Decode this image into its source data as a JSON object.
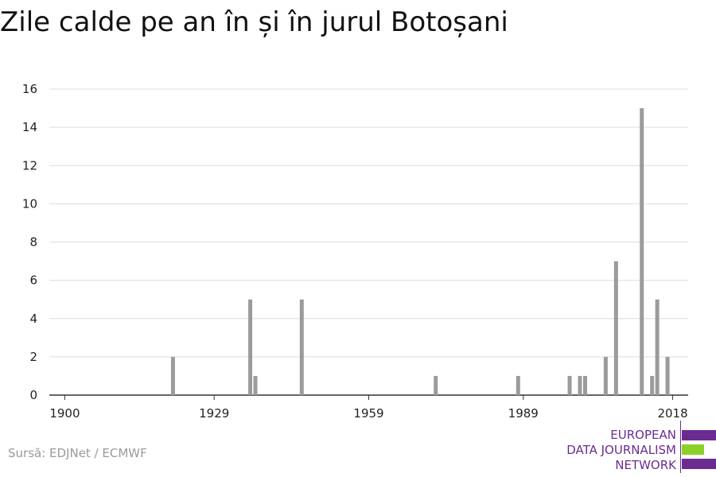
{
  "title": "Zile calde pe an în și în jurul Botoșani",
  "source": "Sursă: EDJNet / ECMWF",
  "logo": {
    "lines": [
      "EUROPEAN",
      "DATA JOURNALISM",
      "NETWORK"
    ],
    "colors": {
      "purple": "#6b2c91",
      "green": "#8cd12b"
    }
  },
  "chart_data": {
    "type": "bar",
    "title": "Zile calde pe an în și în jurul Botoșani",
    "xlabel": "",
    "ylabel": "",
    "xlim": [
      1897,
      2021
    ],
    "ylim": [
      0,
      16
    ],
    "x_ticks": [
      1900,
      1929,
      1959,
      1989,
      2018
    ],
    "y_ticks": [
      0,
      2,
      4,
      6,
      8,
      10,
      12,
      14,
      16
    ],
    "grid": true,
    "bar_color": "#9b9b9b",
    "x": [
      1921,
      1936,
      1937,
      1946,
      1972,
      1988,
      1998,
      2000,
      2001,
      2005,
      2007,
      2012,
      2014,
      2015,
      2017
    ],
    "values": [
      2,
      5,
      1,
      5,
      1,
      1,
      1,
      1,
      1,
      2,
      7,
      15,
      1,
      5,
      2
    ]
  }
}
